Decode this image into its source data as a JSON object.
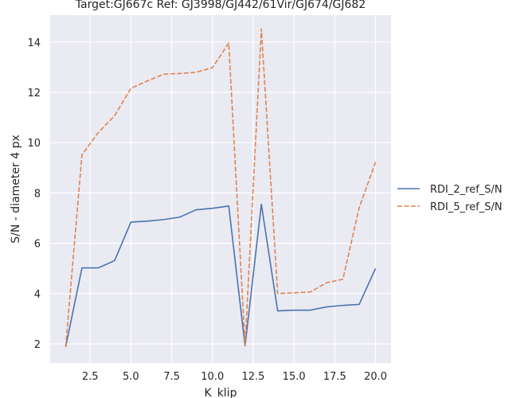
{
  "chart_data": {
    "type": "line",
    "title": "Target:GJ667c Ref: GJ3998/GJ442/61Vir/GJ674/GJ682",
    "xlabel": "K_klip",
    "ylabel": "S/N - diameter 4 px",
    "xlim": [
      0.05,
      20.95
    ],
    "ylim": [
      1.24,
      15.07
    ],
    "xticks": [
      2.5,
      5.0,
      7.5,
      10.0,
      12.5,
      15.0,
      17.5,
      20.0
    ],
    "xtick_labels": [
      "2.5",
      "5.0",
      "7.5",
      "10.0",
      "12.5",
      "15.0",
      "17.5",
      "20.0"
    ],
    "yticks": [
      2,
      4,
      6,
      8,
      10,
      12,
      14
    ],
    "ytick_labels": [
      "2",
      "4",
      "6",
      "8",
      "10",
      "12",
      "14"
    ],
    "grid": true,
    "legend_position": "right-outside",
    "x": [
      1,
      2,
      3,
      4,
      5,
      6,
      7,
      8,
      9,
      10,
      11,
      12,
      13,
      14,
      15,
      16,
      17,
      18,
      19,
      20
    ],
    "series": [
      {
        "name": "RDI_2_ref_S/N",
        "color": "#4c72b0",
        "dash": "solid",
        "values": [
          1.88,
          5.02,
          5.02,
          5.31,
          6.84,
          6.88,
          6.94,
          7.04,
          7.33,
          7.39,
          7.48,
          1.92,
          7.55,
          3.31,
          3.34,
          3.34,
          3.47,
          3.53,
          3.57,
          5.0
        ]
      },
      {
        "name": "RDI_5_ref_S/N",
        "color": "#dd8452",
        "dash": "dashed",
        "values": [
          1.88,
          9.52,
          10.4,
          11.07,
          12.16,
          12.45,
          12.72,
          12.75,
          12.8,
          12.98,
          13.96,
          1.92,
          14.52,
          4.0,
          4.03,
          4.06,
          4.43,
          4.57,
          7.42,
          9.22
        ]
      }
    ]
  }
}
